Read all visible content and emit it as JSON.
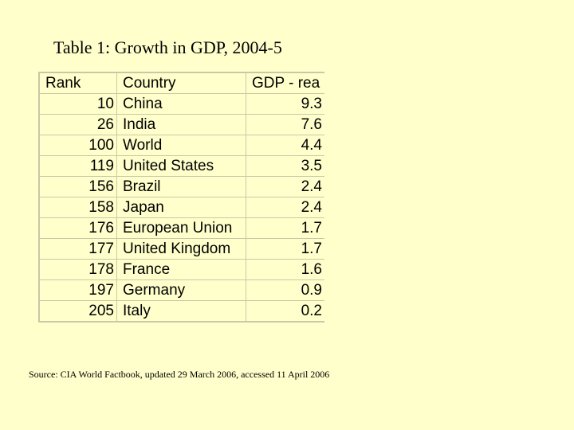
{
  "title": "Table 1: Growth in GDP, 2004-5",
  "table": {
    "headers": {
      "rank": "Rank",
      "country": "Country",
      "gdp": "GDP - rea"
    },
    "rows": [
      {
        "rank": "10",
        "country": "China",
        "gdp": "9.3"
      },
      {
        "rank": "26",
        "country": "India",
        "gdp": "7.6"
      },
      {
        "rank": "100",
        "country": "World",
        "gdp": "4.4"
      },
      {
        "rank": "119",
        "country": "United States",
        "gdp": "3.5"
      },
      {
        "rank": "156",
        "country": "Brazil",
        "gdp": "2.4"
      },
      {
        "rank": "158",
        "country": "Japan",
        "gdp": "2.4"
      },
      {
        "rank": "176",
        "country": "European Union",
        "gdp": "1.7"
      },
      {
        "rank": "177",
        "country": "United Kingdom",
        "gdp": "1.7"
      },
      {
        "rank": "178",
        "country": "France",
        "gdp": "1.6"
      },
      {
        "rank": "197",
        "country": "Germany",
        "gdp": "0.9"
      },
      {
        "rank": "205",
        "country": "Italy",
        "gdp": "0.2"
      }
    ]
  },
  "source": "Source: CIA World Factbook, updated 29 March 2006, accessed 11 April 2006",
  "colors": {
    "background": "#ffffcc",
    "grid": "#c8c8a8",
    "text": "#000000"
  }
}
